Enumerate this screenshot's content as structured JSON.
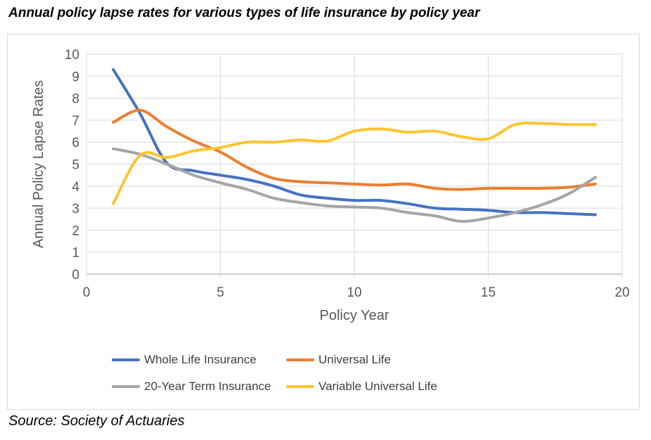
{
  "title": "Annual policy lapse rates for various types of life insurance by policy year",
  "source": "Source: Society of Actuaries",
  "chart_data": {
    "type": "line",
    "smooth": true,
    "x": [
      1,
      2,
      3,
      4,
      5,
      6,
      7,
      8,
      9,
      10,
      11,
      12,
      13,
      14,
      15,
      16,
      17,
      18,
      19
    ],
    "series": [
      {
        "name": "Whole Life Insurance",
        "color": "#4472C4",
        "values": [
          9.3,
          7.3,
          5.05,
          4.7,
          4.5,
          4.3,
          4.0,
          3.6,
          3.45,
          3.35,
          3.35,
          3.2,
          3.0,
          2.95,
          2.9,
          2.8,
          2.8,
          2.75,
          2.7
        ]
      },
      {
        "name": "Universal Life",
        "color": "#ED7D31",
        "values": [
          6.9,
          7.45,
          6.7,
          6.05,
          5.55,
          4.85,
          4.35,
          4.2,
          4.15,
          4.1,
          4.05,
          4.1,
          3.9,
          3.85,
          3.9,
          3.9,
          3.9,
          3.95,
          4.1
        ]
      },
      {
        "name": "20-Year Term Insurance",
        "color": "#A5A5A5",
        "values": [
          5.7,
          5.45,
          5.0,
          4.5,
          4.15,
          3.85,
          3.45,
          3.25,
          3.1,
          3.05,
          3.0,
          2.8,
          2.65,
          2.4,
          2.55,
          2.8,
          3.15,
          3.65,
          4.4
        ]
      },
      {
        "name": "Variable Universal Life",
        "color": "#FFC431",
        "values": [
          3.2,
          5.4,
          5.3,
          5.6,
          5.75,
          6.0,
          6.0,
          6.1,
          6.05,
          6.5,
          6.6,
          6.45,
          6.5,
          6.25,
          6.15,
          6.8,
          6.85,
          6.8,
          6.8
        ]
      }
    ],
    "xlabel": "Policy Year",
    "ylabel": "Annual Policy Lapse Rates",
    "xlim": [
      0,
      20
    ],
    "ylim": [
      0,
      10
    ],
    "x_ticks": [
      0,
      5,
      10,
      15,
      20
    ],
    "y_ticks": [
      0,
      1,
      2,
      3,
      4,
      5,
      6,
      7,
      8,
      9,
      10
    ],
    "grid": "horizontal and vertical, light gray",
    "legend_position": "bottom"
  },
  "colors": {
    "gridline": "#D9D9D9",
    "axis_line": "#BFBFBF",
    "axis_text": "#595959",
    "legend_text": "#404040",
    "title_text": "#000000"
  }
}
